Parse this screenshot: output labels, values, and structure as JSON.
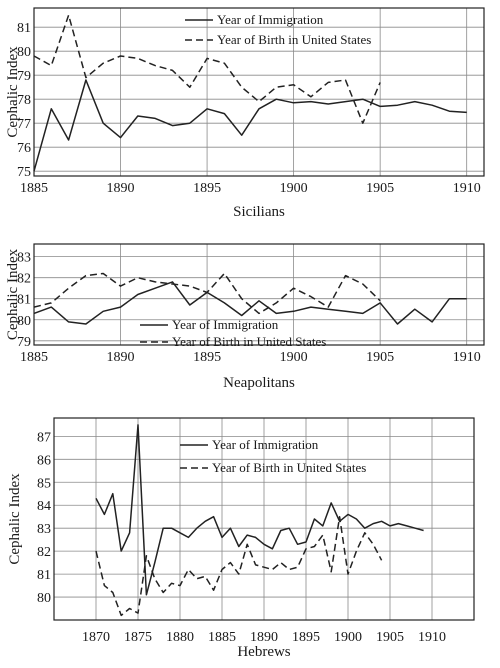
{
  "chart_data": [
    {
      "type": "line",
      "title": "Sicilians",
      "ylabel": "Cephalic Index",
      "xlabel": "",
      "xlim": [
        1885,
        1911
      ],
      "ylim": [
        74.8,
        81.8
      ],
      "xticks": [
        1885,
        1890,
        1895,
        1900,
        1905,
        1910
      ],
      "yticks": [
        75,
        76,
        77,
        78,
        79,
        80,
        81
      ],
      "grid": true,
      "legend_position": "top-center",
      "series": [
        {
          "name": "Year of Immigration",
          "style": "solid",
          "x": [
            1885,
            1886,
            1887,
            1888,
            1889,
            1890,
            1891,
            1892,
            1893,
            1894,
            1895,
            1896,
            1897,
            1898,
            1899,
            1900,
            1901,
            1902,
            1903,
            1904,
            1905,
            1906,
            1907,
            1908,
            1909,
            1910
          ],
          "y": [
            75.0,
            77.6,
            76.3,
            78.8,
            77.0,
            76.4,
            77.3,
            77.2,
            76.9,
            77.0,
            77.6,
            77.4,
            76.5,
            77.6,
            78.0,
            77.85,
            77.9,
            77.8,
            77.9,
            78.0,
            77.7,
            77.75,
            77.9,
            77.75,
            77.5,
            77.45
          ]
        },
        {
          "name": "Year of Birth in United States",
          "style": "dashed",
          "x": [
            1885,
            1886,
            1887,
            1888,
            1889,
            1890,
            1891,
            1892,
            1893,
            1894,
            1895,
            1896,
            1897,
            1898,
            1899,
            1900,
            1901,
            1902,
            1903,
            1904,
            1905
          ],
          "y": [
            79.8,
            79.4,
            81.5,
            78.9,
            79.5,
            79.8,
            79.7,
            79.4,
            79.2,
            78.5,
            79.7,
            79.5,
            78.5,
            77.9,
            78.5,
            78.6,
            78.1,
            78.7,
            78.8,
            77.0,
            78.7
          ]
        }
      ]
    },
    {
      "type": "line",
      "title": "Neapolitans",
      "ylabel": "Cephalic Index",
      "xlabel": "",
      "xlim": [
        1885,
        1911
      ],
      "ylim": [
        78.8,
        83.6
      ],
      "xticks": [
        1885,
        1890,
        1895,
        1900,
        1905,
        1910
      ],
      "yticks": [
        79,
        80,
        81,
        82,
        83
      ],
      "grid": true,
      "legend_position": "bottom-center",
      "series": [
        {
          "name": "Year of Immigration",
          "style": "solid",
          "x": [
            1885,
            1886,
            1887,
            1888,
            1889,
            1890,
            1891,
            1892,
            1893,
            1894,
            1895,
            1896,
            1897,
            1898,
            1899,
            1900,
            1901,
            1902,
            1903,
            1904,
            1905,
            1906,
            1907,
            1908,
            1909,
            1910
          ],
          "y": [
            80.3,
            80.6,
            79.9,
            79.8,
            80.4,
            80.6,
            81.2,
            81.5,
            81.8,
            80.7,
            81.3,
            80.8,
            80.2,
            80.9,
            80.3,
            80.4,
            80.6,
            80.5,
            80.4,
            80.3,
            80.8,
            79.8,
            80.5,
            79.9,
            81.0,
            81.0
          ]
        },
        {
          "name": "Year of Birth in United States",
          "style": "dashed",
          "x": [
            1885,
            1886,
            1887,
            1888,
            1889,
            1890,
            1891,
            1892,
            1893,
            1894,
            1895,
            1896,
            1897,
            1898,
            1899,
            1900,
            1901,
            1902,
            1903,
            1904,
            1905
          ],
          "y": [
            80.6,
            80.8,
            81.5,
            82.1,
            82.2,
            81.6,
            82.0,
            81.8,
            81.7,
            81.6,
            81.3,
            82.2,
            81.0,
            80.3,
            80.8,
            81.5,
            81.1,
            80.6,
            82.1,
            81.7,
            80.9
          ]
        }
      ]
    },
    {
      "type": "line",
      "title": "Hebrews",
      "ylabel": "Cephalic Index",
      "xlabel": "",
      "xlim": [
        1865,
        1915
      ],
      "ylim": [
        79.0,
        87.8
      ],
      "xticks": [
        1870,
        1875,
        1880,
        1885,
        1890,
        1895,
        1900,
        1905,
        1910
      ],
      "yticks": [
        80,
        81,
        82,
        83,
        84,
        85,
        86,
        87
      ],
      "grid": true,
      "legend_position": "top-right",
      "series": [
        {
          "name": "Year of Immigration",
          "style": "solid",
          "x": [
            1870,
            1871,
            1872,
            1873,
            1874,
            1875,
            1876,
            1877,
            1878,
            1879,
            1880,
            1881,
            1882,
            1883,
            1884,
            1885,
            1886,
            1887,
            1888,
            1889,
            1890,
            1891,
            1892,
            1893,
            1894,
            1895,
            1896,
            1897,
            1898,
            1899,
            1900,
            1901,
            1902,
            1903,
            1904,
            1905,
            1906,
            1907,
            1908,
            1909
          ],
          "y": [
            84.3,
            83.6,
            84.5,
            82.0,
            82.8,
            87.5,
            80.1,
            81.5,
            83.0,
            83.0,
            82.8,
            82.6,
            83.0,
            83.3,
            83.5,
            82.6,
            83.0,
            82.2,
            82.7,
            82.6,
            82.3,
            82.1,
            82.9,
            83.0,
            82.3,
            82.4,
            83.4,
            83.1,
            84.1,
            83.3,
            83.6,
            83.4,
            83.0,
            83.2,
            83.3,
            83.1,
            83.2,
            83.1,
            83.0,
            82.9
          ]
        },
        {
          "name": "Year of Birth in United States",
          "style": "dashed",
          "x": [
            1870,
            1871,
            1872,
            1873,
            1874,
            1875,
            1876,
            1877,
            1878,
            1879,
            1880,
            1881,
            1882,
            1883,
            1884,
            1885,
            1886,
            1887,
            1888,
            1889,
            1890,
            1891,
            1892,
            1893,
            1894,
            1895,
            1896,
            1897,
            1898,
            1899,
            1900,
            1901,
            1902,
            1903,
            1904
          ],
          "y": [
            82.0,
            80.5,
            80.2,
            79.2,
            79.5,
            79.3,
            81.8,
            80.8,
            80.2,
            80.6,
            80.5,
            81.2,
            80.8,
            80.9,
            80.3,
            81.2,
            81.5,
            81.0,
            82.3,
            81.4,
            81.3,
            81.2,
            81.5,
            81.2,
            81.3,
            82.1,
            82.2,
            82.7,
            81.1,
            83.5,
            81.0,
            82.0,
            82.8,
            82.3,
            81.6
          ]
        }
      ]
    }
  ]
}
